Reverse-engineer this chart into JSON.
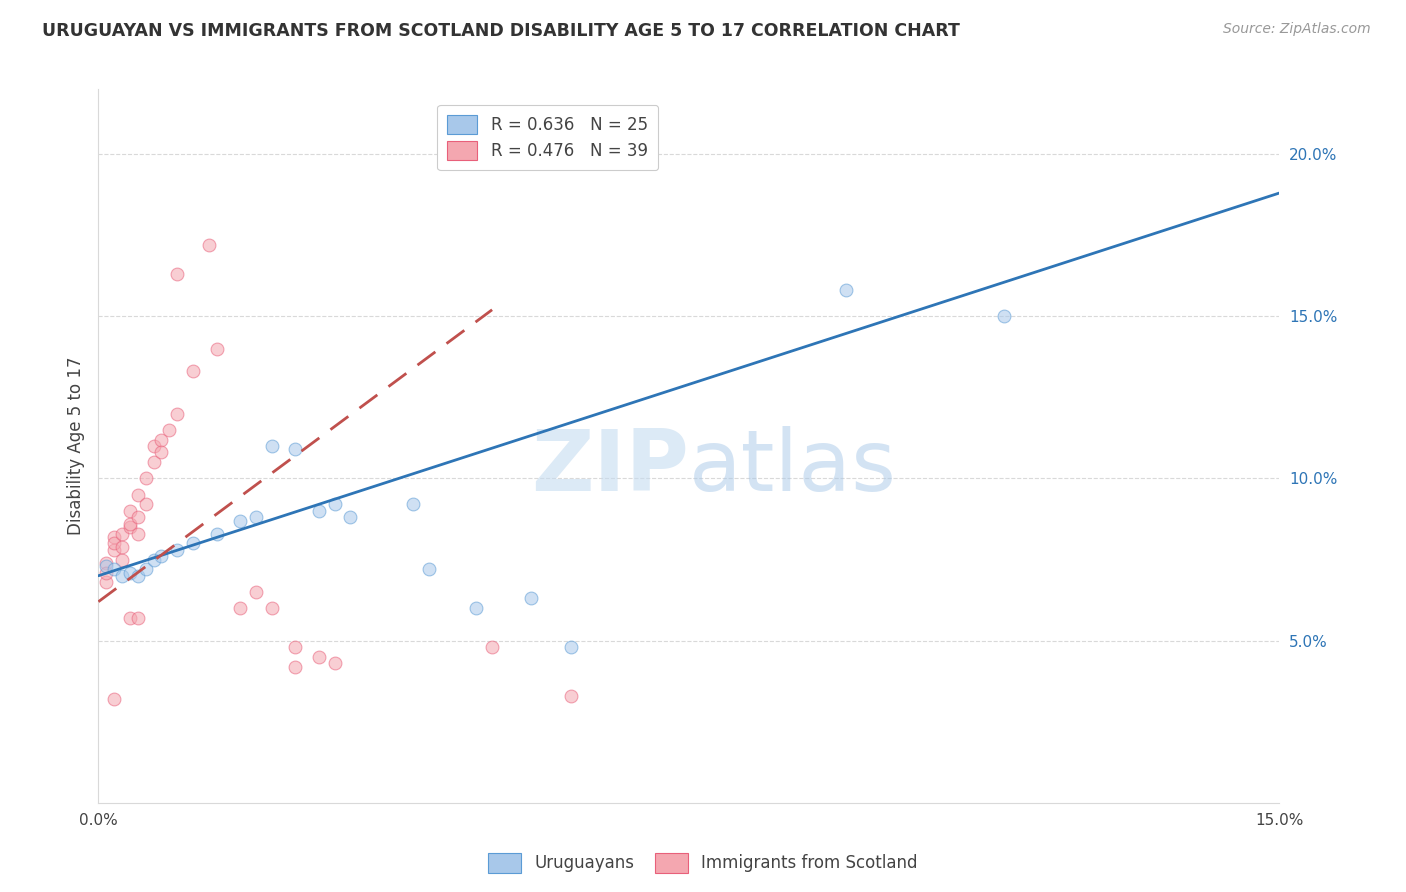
{
  "title": "URUGUAYAN VS IMMIGRANTS FROM SCOTLAND DISABILITY AGE 5 TO 17 CORRELATION CHART",
  "source": "Source: ZipAtlas.com",
  "ylabel": "Disability Age 5 to 17",
  "xlim": [
    0.0,
    0.15
  ],
  "ylim": [
    0.0,
    0.22
  ],
  "xticks": [
    0.0,
    0.03,
    0.06,
    0.09,
    0.12,
    0.15
  ],
  "xtick_labels": [
    "0.0%",
    "",
    "",
    "",
    "",
    "15.0%"
  ],
  "yticks_right": [
    0.05,
    0.1,
    0.15,
    0.2
  ],
  "ytick_labels_right": [
    "5.0%",
    "10.0%",
    "15.0%",
    "20.0%"
  ],
  "uruguayan_scatter": [
    [
      0.001,
      0.073
    ],
    [
      0.002,
      0.072
    ],
    [
      0.003,
      0.07
    ],
    [
      0.004,
      0.071
    ],
    [
      0.005,
      0.07
    ],
    [
      0.006,
      0.072
    ],
    [
      0.007,
      0.075
    ],
    [
      0.008,
      0.076
    ],
    [
      0.01,
      0.078
    ],
    [
      0.012,
      0.08
    ],
    [
      0.015,
      0.083
    ],
    [
      0.018,
      0.087
    ],
    [
      0.02,
      0.088
    ],
    [
      0.022,
      0.11
    ],
    [
      0.025,
      0.109
    ],
    [
      0.028,
      0.09
    ],
    [
      0.03,
      0.092
    ],
    [
      0.032,
      0.088
    ],
    [
      0.04,
      0.092
    ],
    [
      0.042,
      0.072
    ],
    [
      0.048,
      0.06
    ],
    [
      0.055,
      0.063
    ],
    [
      0.06,
      0.048
    ],
    [
      0.095,
      0.158
    ],
    [
      0.115,
      0.15
    ]
  ],
  "scotland_scatter": [
    [
      0.001,
      0.068
    ],
    [
      0.001,
      0.074
    ],
    [
      0.001,
      0.071
    ],
    [
      0.002,
      0.078
    ],
    [
      0.002,
      0.082
    ],
    [
      0.002,
      0.08
    ],
    [
      0.003,
      0.075
    ],
    [
      0.003,
      0.083
    ],
    [
      0.003,
      0.079
    ],
    [
      0.004,
      0.085
    ],
    [
      0.004,
      0.09
    ],
    [
      0.004,
      0.086
    ],
    [
      0.005,
      0.088
    ],
    [
      0.005,
      0.083
    ],
    [
      0.005,
      0.095
    ],
    [
      0.006,
      0.1
    ],
    [
      0.006,
      0.092
    ],
    [
      0.007,
      0.11
    ],
    [
      0.007,
      0.105
    ],
    [
      0.008,
      0.112
    ],
    [
      0.008,
      0.108
    ],
    [
      0.009,
      0.115
    ],
    [
      0.01,
      0.12
    ],
    [
      0.012,
      0.133
    ],
    [
      0.015,
      0.14
    ],
    [
      0.018,
      0.06
    ],
    [
      0.02,
      0.065
    ],
    [
      0.022,
      0.06
    ],
    [
      0.025,
      0.048
    ],
    [
      0.025,
      0.042
    ],
    [
      0.028,
      0.045
    ],
    [
      0.03,
      0.043
    ],
    [
      0.01,
      0.163
    ],
    [
      0.014,
      0.172
    ],
    [
      0.05,
      0.048
    ],
    [
      0.06,
      0.033
    ],
    [
      0.002,
      0.032
    ],
    [
      0.004,
      0.057
    ],
    [
      0.005,
      0.057
    ]
  ],
  "blue_line_x": [
    0.0,
    0.15
  ],
  "blue_line_y": [
    0.07,
    0.188
  ],
  "pink_line_x": [
    0.0,
    0.05
  ],
  "pink_line_y": [
    0.062,
    0.152
  ],
  "background_color": "#ffffff",
  "scatter_alpha": 0.55,
  "scatter_size": 85,
  "blue_color": "#a8c8ea",
  "blue_edge": "#5b9bd5",
  "pink_color": "#f4a7b0",
  "pink_edge": "#e8607a",
  "blue_line_color": "#2e75b6",
  "pink_line_color": "#c0504d",
  "grid_color": "#d9d9d9",
  "watermark_zip_color": "#c5dcf0",
  "watermark_atlas_color": "#a8c8e8"
}
